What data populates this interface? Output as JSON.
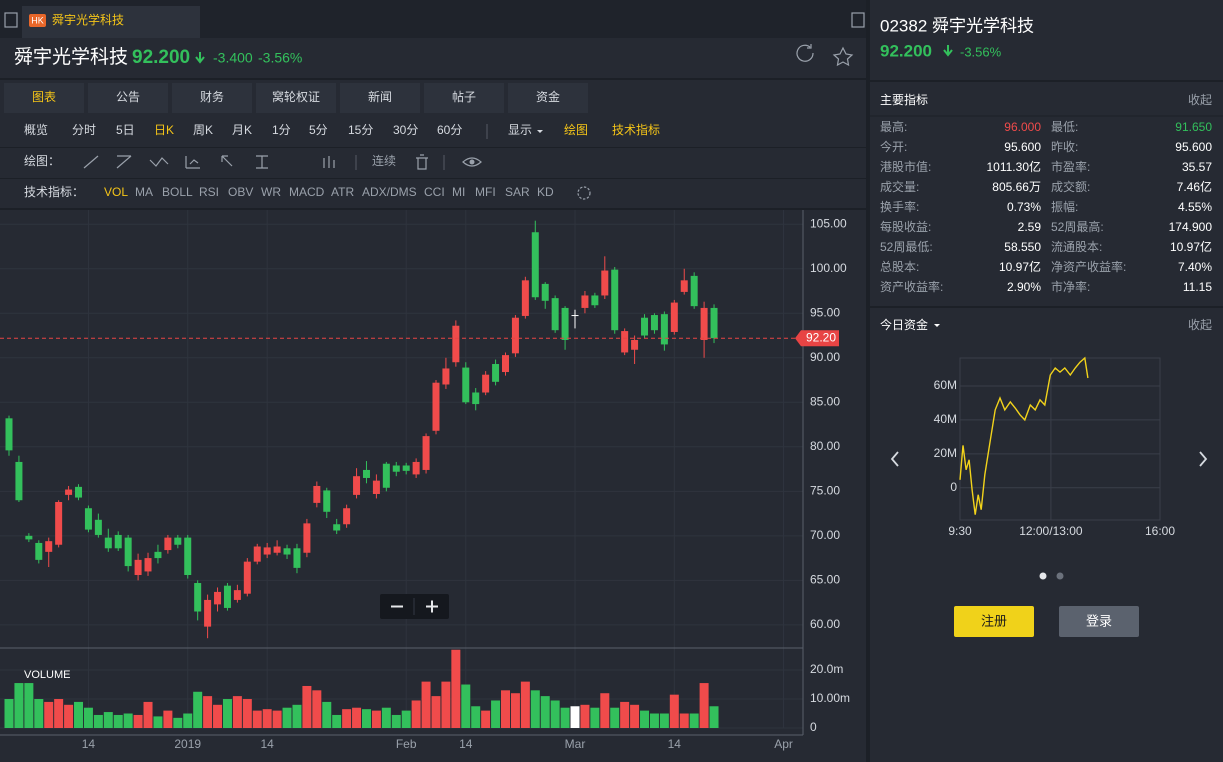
{
  "tab": {
    "badge": "HK",
    "title": "舜宇光学科技"
  },
  "header": {
    "name": "舜宇光学科技",
    "price": "92.200",
    "change": "-3.400",
    "change_pct": "-3.56%"
  },
  "tabs": [
    "图表",
    "公告",
    "财务",
    "窝轮权证",
    "新闻",
    "帖子",
    "资金"
  ],
  "periods": [
    "概览",
    "分时",
    "5日",
    "日K",
    "周K",
    "月K",
    "1分",
    "5分",
    "15分",
    "30分",
    "60分"
  ],
  "period_tools": [
    "显示",
    "绘图",
    "技术指标"
  ],
  "draw_label": "绘图：",
  "draw_continuous": "连续",
  "indicator_label": "技术指标：",
  "indicators": [
    "VOL",
    "MA",
    "BOLL",
    "RSI",
    "OBV",
    "WR",
    "MACD",
    "ATR",
    "ADX/DMS",
    "CCI",
    "MI",
    "MFI",
    "SAR",
    "KD"
  ],
  "side": {
    "code_name": "02382 舜宇光学科技",
    "price": "92.200",
    "change_pct": "-3.56%",
    "metrics_title": "主要指标",
    "collapse": "收起",
    "metrics": [
      [
        "最高:",
        "96.000",
        "最低:",
        "91.650"
      ],
      [
        "今开:",
        "95.600",
        "昨收:",
        "95.600"
      ],
      [
        "港股市值:",
        "1011.30亿",
        "市盈率:",
        "35.57"
      ],
      [
        "成交量:",
        "805.66万",
        "成交额:",
        "7.46亿"
      ],
      [
        "换手率:",
        "0.73%",
        "振幅:",
        "4.55%"
      ],
      [
        "每股收益:",
        "2.59",
        "52周最高:",
        "174.900"
      ],
      [
        "52周最低:",
        "58.550",
        "流通股本:",
        "10.97亿"
      ],
      [
        "总股本:",
        "10.97亿",
        "净资产收益率:",
        "7.40%"
      ],
      [
        "资产收益率:",
        "2.90%",
        "市净率:",
        "11.15"
      ]
    ],
    "funds_title": "今日资金",
    "funds_collapse": "收起",
    "register": "注册",
    "login": "登录"
  },
  "chart_data": [
    {
      "type": "candlestick",
      "categories": [
        null,
        null,
        null,
        null,
        null,
        null,
        null,
        null,
        "14",
        null,
        null,
        null,
        null,
        null,
        null,
        null,
        null,
        null,
        "2019",
        null,
        null,
        null,
        null,
        null,
        null,
        null,
        "14",
        null,
        null,
        null,
        null,
        null,
        null,
        null,
        null,
        null,
        null,
        null,
        null,
        null,
        "Feb",
        null,
        null,
        null,
        null,
        null,
        "14",
        null,
        null,
        null,
        null,
        null,
        null,
        null,
        null,
        null,
        null,
        "Mar",
        null,
        null,
        null,
        null,
        null,
        null,
        null,
        null,
        null,
        "14",
        null,
        null,
        null,
        null,
        null,
        null,
        null,
        null,
        null,
        null,
        "Apr",
        null
      ],
      "open": [
        83.2,
        78.3,
        70.0,
        69.2,
        68.2,
        69.0,
        74.6,
        75.5,
        73.1,
        71.8,
        69.8,
        70.1,
        69.8,
        65.6,
        66.0,
        68.2,
        68.4,
        69.8,
        69.8,
        64.7,
        59.8,
        62.3,
        64.4,
        62.8,
        63.5,
        67.1,
        67.9,
        68.1,
        68.6,
        68.6,
        68.1,
        73.7,
        75.1,
        71.3,
        71.3,
        74.6,
        77.4,
        74.7,
        78.1,
        77.9,
        77.9,
        76.9,
        77.4,
        81.8,
        87.0,
        89.5,
        88.9,
        86.1,
        86.1,
        89.3,
        88.4,
        90.5,
        94.7,
        104.1,
        98.3,
        96.7,
        95.6,
        94.8,
        95.6,
        97.0,
        97.0,
        99.9,
        90.6,
        90.9,
        94.5,
        94.8,
        94.9,
        92.9,
        97.4,
        99.2,
        92.0,
        95.6,
        null,
        null,
        null,
        null,
        null,
        null,
        null,
        null
      ],
      "high": [
        83.5,
        79.0,
        70.3,
        69.5,
        69.8,
        74.0,
        75.6,
        75.8,
        73.4,
        72.5,
        70.8,
        70.5,
        70.1,
        68.0,
        68.1,
        69.0,
        70.1,
        70.1,
        70.1,
        65.0,
        63.4,
        64.2,
        64.7,
        64.5,
        67.5,
        69.1,
        69.2,
        69.5,
        69.0,
        69.1,
        71.9,
        76.1,
        75.4,
        71.9,
        73.5,
        77.6,
        78.4,
        76.9,
        78.3,
        78.3,
        78.2,
        78.7,
        81.5,
        87.5,
        90.0,
        94.2,
        89.5,
        86.6,
        88.5,
        89.8,
        90.6,
        94.8,
        99.1,
        105.4,
        98.5,
        97.0,
        95.8,
        95.4,
        97.5,
        97.3,
        101.4,
        100.2,
        93.3,
        92.5,
        94.9,
        95.0,
        95.2,
        96.5,
        100.0,
        99.6,
        96.3,
        96.0,
        null,
        null,
        null,
        null,
        null,
        null,
        null,
        null
      ],
      "low": [
        79.0,
        73.8,
        69.3,
        66.9,
        66.5,
        68.7,
        74.0,
        74.0,
        70.4,
        69.8,
        68.2,
        68.3,
        66.0,
        65.0,
        65.5,
        66.9,
        68.0,
        68.6,
        65.2,
        60.5,
        58.5,
        61.5,
        61.6,
        62.5,
        63.2,
        66.8,
        67.5,
        67.8,
        67.4,
        65.8,
        67.6,
        73.2,
        72.0,
        70.2,
        70.9,
        74.2,
        75.9,
        74.2,
        75.0,
        76.7,
        76.9,
        76.5,
        77.0,
        81.4,
        86.5,
        89.0,
        84.8,
        84.1,
        85.8,
        86.9,
        88.0,
        90.1,
        94.4,
        96.5,
        95.5,
        92.8,
        90.9,
        93.3,
        95.0,
        95.6,
        96.6,
        92.7,
        90.3,
        89.3,
        92.2,
        92.7,
        90.8,
        92.6,
        97.1,
        95.5,
        90.0,
        91.65,
        null,
        null,
        null,
        null,
        null,
        null,
        null,
        null
      ],
      "close": [
        79.6,
        74.0,
        69.6,
        67.3,
        69.4,
        73.8,
        75.2,
        74.3,
        70.7,
        70.1,
        68.6,
        68.6,
        66.6,
        67.3,
        67.5,
        67.5,
        69.8,
        69.0,
        65.6,
        61.5,
        62.8,
        63.7,
        61.9,
        63.9,
        67.1,
        68.8,
        68.7,
        68.8,
        67.9,
        66.4,
        71.4,
        75.6,
        72.7,
        70.6,
        73.1,
        76.7,
        76.5,
        76.2,
        75.4,
        77.2,
        77.3,
        78.3,
        81.2,
        87.2,
        88.8,
        93.6,
        85.0,
        84.8,
        88.1,
        87.3,
        90.3,
        94.5,
        98.7,
        96.8,
        96.4,
        93.1,
        92.0,
        94.8,
        97.0,
        95.9,
        99.8,
        93.1,
        93.0,
        92.0,
        92.5,
        93.1,
        91.5,
        96.2,
        98.7,
        95.8,
        95.6,
        92.2,
        null,
        null,
        null,
        null,
        null,
        null,
        null,
        null
      ],
      "volume": [
        10,
        15.5,
        15.5,
        10,
        9,
        10,
        8,
        9,
        7,
        4.5,
        5.5,
        4.5,
        5,
        4.5,
        9,
        4,
        6,
        3.5,
        5,
        12.5,
        11,
        8,
        10,
        11,
        10,
        6,
        6.5,
        6,
        7,
        8,
        14.5,
        13,
        9,
        4.5,
        6.5,
        7,
        6.5,
        6,
        7,
        4.5,
        6,
        9.5,
        16,
        11,
        16,
        27,
        15,
        7.5,
        6,
        9.5,
        13,
        12,
        16,
        13,
        11,
        9.5,
        7,
        7.5,
        8,
        7,
        12,
        7,
        9,
        8,
        6,
        5,
        5,
        11.5,
        5,
        5,
        15.5,
        7.5,
        null,
        null,
        null,
        null,
        null,
        null,
        null,
        null
      ],
      "up_color": "#f04b4b",
      "down_color": "#33c05c",
      "flat_color": "#ffffff",
      "ylim": [
        57.4,
        106.6
      ],
      "yticks": [
        {
          "value": 60,
          "label": "60.00"
        },
        {
          "value": 65,
          "label": "65.00"
        },
        {
          "value": 70,
          "label": "70.00"
        },
        {
          "value": 75,
          "label": "75.00"
        },
        {
          "value": 80,
          "label": "80.00"
        },
        {
          "value": 85,
          "label": "85.00"
        },
        {
          "value": 90,
          "label": "90.00"
        },
        {
          "value": 95,
          "label": "95.00"
        },
        {
          "value": 100,
          "label": "100.00"
        },
        {
          "value": 105,
          "label": "105.00"
        }
      ],
      "last_price": {
        "value": 92.2,
        "label": "92.20"
      },
      "last_price_color": "#e84444",
      "volume_title": "VOLUME",
      "volume_ylim": [
        0,
        27.6
      ],
      "volume_yticks": [
        0,
        {
          "value": 10,
          "label": "10.00m"
        },
        {
          "value": 20,
          "label": "20.0m"
        }
      ],
      "grid": true
    },
    {
      "type": "line",
      "x": [
        0,
        5,
        10,
        15,
        20,
        25,
        30,
        35,
        41,
        50,
        58,
        66,
        74,
        83,
        91,
        99,
        107,
        116,
        124,
        132,
        140,
        149,
        157,
        165,
        173,
        182,
        190,
        198,
        206,
        211
      ],
      "series": [
        {
          "color": "#f2d31b",
          "values": [
            4.7,
            25,
            10.6,
            16.5,
            -1.2,
            -15.9,
            -4.1,
            -12.9,
            7.6,
            28,
            45.9,
            52.9,
            45.9,
            50.6,
            47,
            43,
            40,
            48.8,
            45.9,
            51.8,
            48.8,
            66.5,
            70.6,
            68.2,
            70.6,
            66.5,
            70.6,
            74,
            76.5,
            64.7
          ]
        }
      ],
      "xlim": [
        0,
        330
      ],
      "xticks": [
        {
          "value": 0,
          "label": "9:30"
        },
        {
          "value": 150,
          "label": "12:00/13:00"
        },
        {
          "value": 330,
          "label": "16:00"
        }
      ],
      "ylim": [
        -19,
        76.5
      ],
      "yticks": [
        0,
        {
          "value": 20,
          "label": "20M"
        },
        {
          "value": 40,
          "label": "40M"
        },
        {
          "value": 60,
          "label": "60M"
        }
      ],
      "grid": true
    }
  ]
}
